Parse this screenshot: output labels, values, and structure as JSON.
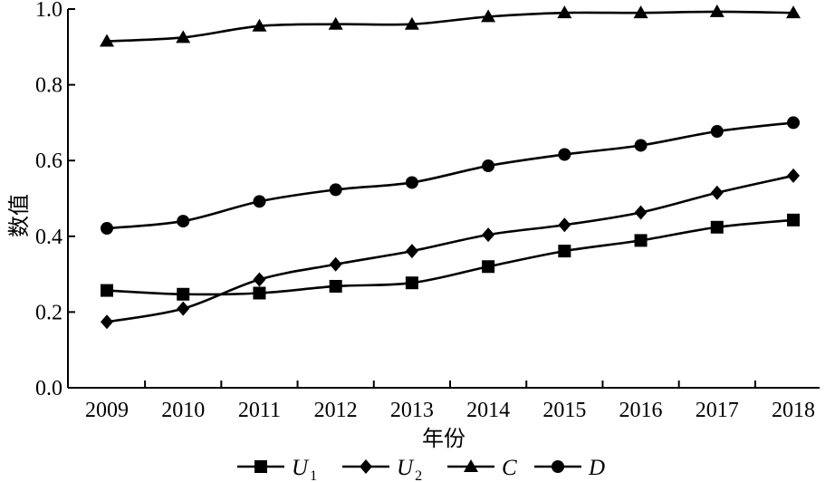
{
  "chart_data": {
    "type": "line",
    "xlabel": "年份",
    "ylabel": "数值",
    "categories": [
      "2009",
      "2010",
      "2011",
      "2012",
      "2013",
      "2014",
      "2015",
      "2016",
      "2017",
      "2018"
    ],
    "ylim": [
      0,
      1.0
    ],
    "yticks": [
      "0.0",
      "0.2",
      "0.4",
      "0.6",
      "0.8",
      "1.0"
    ],
    "grid": false,
    "legend_position": "bottom",
    "series": [
      {
        "name": "U1",
        "legend_main": "U",
        "legend_sub": "1",
        "marker": "square",
        "values": [
          0.257,
          0.247,
          0.25,
          0.268,
          0.277,
          0.32,
          0.361,
          0.389,
          0.424,
          0.443
        ]
      },
      {
        "name": "U2",
        "legend_main": "U",
        "legend_sub": "2",
        "marker": "diamond",
        "values": [
          0.174,
          0.209,
          0.286,
          0.326,
          0.361,
          0.404,
          0.43,
          0.463,
          0.515,
          0.56
        ]
      },
      {
        "name": "C",
        "legend_main": "C",
        "legend_sub": "",
        "marker": "triangle",
        "values": [
          0.915,
          0.925,
          0.955,
          0.96,
          0.96,
          0.98,
          0.99,
          0.99,
          0.993,
          0.99
        ]
      },
      {
        "name": "D",
        "legend_main": "D",
        "legend_sub": "",
        "marker": "circle",
        "values": [
          0.421,
          0.44,
          0.492,
          0.523,
          0.542,
          0.586,
          0.616,
          0.64,
          0.677,
          0.7
        ]
      }
    ]
  }
}
